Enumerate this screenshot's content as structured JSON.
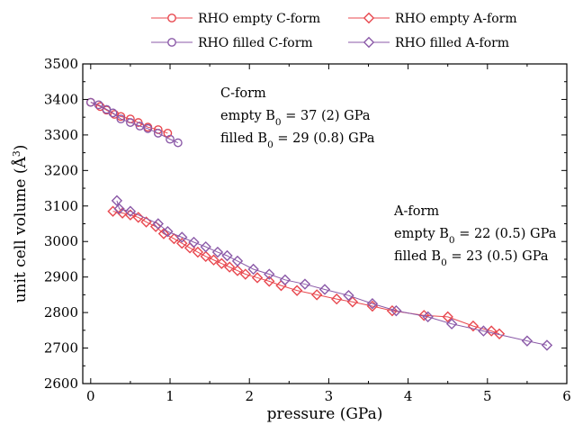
{
  "chart_data": {
    "type": "scatter",
    "xlabel": "pressure (GPa)",
    "ylabel": "unit cell volume (Å",
    "ylabel_sup": "3",
    "ylabel_close": ")",
    "xlim": [
      -0.1,
      6.0
    ],
    "ylim": [
      2600,
      3500
    ],
    "xticks": [
      0,
      1,
      2,
      3,
      4,
      5,
      6
    ],
    "yticks": [
      2600,
      2700,
      2800,
      2900,
      3000,
      3100,
      3200,
      3300,
      3400,
      3500
    ],
    "legend_placement": "top",
    "legend": [
      {
        "label": "RHO empty C-form",
        "series": 0
      },
      {
        "label": "RHO empty A-form",
        "series": 1
      },
      {
        "label": "RHO filled C-form",
        "series": 2
      },
      {
        "label": "RHO filled A-form",
        "series": 3
      }
    ],
    "series": [
      {
        "name": "RHO empty C-form",
        "marker": "circle",
        "color": "#e8484f",
        "points": [
          [
            0.0,
            3392
          ],
          [
            0.12,
            3380
          ],
          [
            0.2,
            3370
          ],
          [
            0.3,
            3358
          ],
          [
            0.38,
            3352
          ],
          [
            0.5,
            3345
          ],
          [
            0.6,
            3335
          ],
          [
            0.72,
            3322
          ],
          [
            0.85,
            3315
          ],
          [
            0.97,
            3305
          ]
        ]
      },
      {
        "name": "RHO empty A-form",
        "marker": "diamond",
        "color": "#e8484f",
        "points": [
          [
            0.28,
            3085
          ],
          [
            0.4,
            3080
          ],
          [
            0.5,
            3075
          ],
          [
            0.6,
            3068
          ],
          [
            0.7,
            3055
          ],
          [
            0.82,
            3042
          ],
          [
            0.92,
            3022
          ],
          [
            1.05,
            3008
          ],
          [
            1.15,
            2995
          ],
          [
            1.25,
            2982
          ],
          [
            1.35,
            2970
          ],
          [
            1.45,
            2958
          ],
          [
            1.55,
            2948
          ],
          [
            1.65,
            2938
          ],
          [
            1.75,
            2928
          ],
          [
            1.85,
            2918
          ],
          [
            1.95,
            2908
          ],
          [
            2.1,
            2898
          ],
          [
            2.25,
            2888
          ],
          [
            2.4,
            2876
          ],
          [
            2.6,
            2862
          ],
          [
            2.85,
            2850
          ],
          [
            3.1,
            2838
          ],
          [
            3.3,
            2830
          ],
          [
            3.55,
            2818
          ],
          [
            3.8,
            2805
          ],
          [
            4.2,
            2792
          ],
          [
            4.5,
            2788
          ],
          [
            4.82,
            2762
          ],
          [
            5.05,
            2748
          ],
          [
            5.15,
            2740
          ]
        ]
      },
      {
        "name": "RHO filled C-form",
        "marker": "circle",
        "color": "#8b5aa8",
        "points": [
          [
            0.0,
            3392
          ],
          [
            0.1,
            3385
          ],
          [
            0.2,
            3372
          ],
          [
            0.28,
            3362
          ],
          [
            0.38,
            3345
          ],
          [
            0.5,
            3335
          ],
          [
            0.62,
            3325
          ],
          [
            0.72,
            3318
          ],
          [
            0.85,
            3305
          ],
          [
            1.0,
            3288
          ],
          [
            1.1,
            3278
          ]
        ]
      },
      {
        "name": "RHO filled A-form",
        "marker": "diamond",
        "color": "#8b5aa8",
        "points": [
          [
            0.33,
            3115
          ],
          [
            0.36,
            3092
          ],
          [
            0.5,
            3085
          ],
          [
            0.85,
            3050
          ],
          [
            0.97,
            3028
          ],
          [
            1.15,
            3012
          ],
          [
            1.3,
            2998
          ],
          [
            1.45,
            2985
          ],
          [
            1.6,
            2970
          ],
          [
            1.72,
            2960
          ],
          [
            1.85,
            2945
          ],
          [
            2.05,
            2922
          ],
          [
            2.25,
            2908
          ],
          [
            2.45,
            2892
          ],
          [
            2.7,
            2880
          ],
          [
            2.95,
            2865
          ],
          [
            3.25,
            2848
          ],
          [
            3.55,
            2825
          ],
          [
            3.85,
            2805
          ],
          [
            4.25,
            2788
          ],
          [
            4.55,
            2768
          ],
          [
            4.95,
            2748
          ],
          [
            5.5,
            2720
          ],
          [
            5.75,
            2708
          ]
        ]
      }
    ],
    "annotations": [
      {
        "lines": [
          {
            "text": "C-form"
          },
          {
            "text": "empty B",
            "sub": "0",
            "rest": " = 37 (2) GPa"
          },
          {
            "text": "filled B",
            "sub": "0",
            "rest": " = 29 (0.8) GPa"
          }
        ]
      },
      {
        "lines": [
          {
            "text": "A-form"
          },
          {
            "text": "empty B",
            "sub": "0",
            "rest": " = 22 (0.5) GPa"
          },
          {
            "text": "filled B",
            "sub": "0",
            "rest": " = 23 (0.5) GPa"
          }
        ]
      }
    ]
  }
}
